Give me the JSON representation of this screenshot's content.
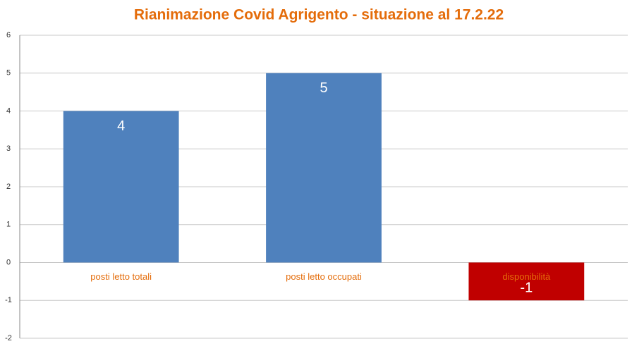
{
  "chart_data": {
    "type": "bar",
    "title": "Rianimazione Covid Agrigento - situazione al 17.2.22",
    "categories": [
      "posti letto totali",
      "posti letto occupati",
      "disponibilità"
    ],
    "values": [
      4,
      5,
      -1
    ],
    "colors": [
      "#4f81bd",
      "#4f81bd",
      "#c00000"
    ],
    "ylim": [
      -2,
      6
    ],
    "yticks": [
      -2,
      -1,
      0,
      1,
      2,
      3,
      4,
      5,
      6
    ],
    "grid": true
  }
}
